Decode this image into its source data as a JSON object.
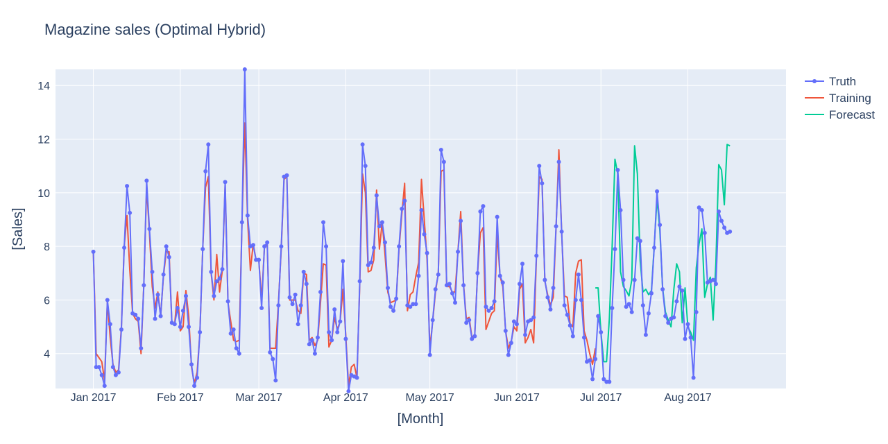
{
  "chart_data": {
    "type": "line",
    "title": "Magazine sales (Optimal Hybrid)",
    "xlabel": "[Month]",
    "ylabel": "[Sales]",
    "ylim": [
      2.7,
      14.6
    ],
    "xlim_days": [
      -13.5,
      247
    ],
    "x_axis_type": "date",
    "x_ticks": [
      {
        "label": "Jan 2017",
        "day": 0
      },
      {
        "label": "Feb 2017",
        "day": 31
      },
      {
        "label": "Mar 2017",
        "day": 59
      },
      {
        "label": "Apr 2017",
        "day": 90
      },
      {
        "label": "May 2017",
        "day": 120
      },
      {
        "label": "Jun 2017",
        "day": 151
      },
      {
        "label": "Jul 2017",
        "day": 181
      },
      {
        "label": "Aug 2017",
        "day": 212
      }
    ],
    "y_ticks": [
      4,
      6,
      8,
      10,
      12,
      14
    ],
    "grid": true,
    "legend": "top-right",
    "colors": {
      "background": "#e5ecf6",
      "grid": "#ffffff",
      "text": "#2a3f5f",
      "truth": "#636efa",
      "training": "#ef553b",
      "forecast": "#00cc96"
    },
    "series": [
      {
        "name": "Truth",
        "mode": "lines+markers",
        "start_date": "2017-01-01",
        "values": [
          7.8,
          3.5,
          3.5,
          3.2,
          2.8,
          6.0,
          5.1,
          3.5,
          3.2,
          3.3,
          4.9,
          7.95,
          10.25,
          9.25,
          5.5,
          5.45,
          5.3,
          4.2,
          6.55,
          10.45,
          8.65,
          7.05,
          5.3,
          6.2,
          5.4,
          6.95,
          8.0,
          7.6,
          5.15,
          5.1,
          5.7,
          5.0,
          5.6,
          6.15,
          5.0,
          3.6,
          2.8,
          3.1,
          4.8,
          7.9,
          10.8,
          11.8,
          7.05,
          6.15,
          6.7,
          6.8,
          7.15,
          10.4,
          5.95,
          4.75,
          4.9,
          4.2,
          4.0,
          8.9,
          14.6,
          9.15,
          8.0,
          8.05,
          7.5,
          7.5,
          5.7,
          8.0,
          8.15,
          4.05,
          3.8,
          3.0,
          5.8,
          8.0,
          10.6,
          10.65,
          6.1,
          5.85,
          6.2,
          5.1,
          5.8,
          7.05,
          6.6,
          4.35,
          4.5,
          4.0,
          4.6,
          6.3,
          8.9,
          8.0,
          4.8,
          4.5,
          5.65,
          4.8,
          5.2,
          7.45,
          4.55,
          2.6,
          3.2,
          3.15,
          3.1,
          6.7,
          11.8,
          11.0,
          7.3,
          7.4,
          7.95,
          9.9,
          8.75,
          8.9,
          8.15,
          6.45,
          5.75,
          5.6,
          6.05,
          8.0,
          9.4,
          9.7,
          5.8,
          5.75,
          5.85,
          5.85,
          6.9,
          9.35,
          8.45,
          7.75,
          3.95,
          5.25,
          6.4,
          6.95,
          11.6,
          11.15,
          6.55,
          6.6,
          6.25,
          5.9,
          7.8,
          8.95,
          6.55,
          5.15,
          5.25,
          4.55,
          4.65,
          7.0,
          9.3,
          9.5,
          5.75,
          5.6,
          5.7,
          5.95,
          9.1,
          6.9,
          6.65,
          4.85,
          3.95,
          4.4,
          5.2,
          5.1,
          6.6,
          7.35,
          4.7,
          5.2,
          5.25,
          5.35,
          7.65,
          11.0,
          10.35,
          6.75,
          6.1,
          5.65,
          6.45,
          8.75,
          11.15,
          8.55,
          5.8,
          5.45,
          5.05,
          4.65,
          6.0,
          6.95,
          6.0,
          4.6,
          3.7,
          3.75,
          3.05,
          3.8,
          5.4,
          4.8,
          3.05,
          2.95,
          2.95,
          5.7,
          7.9,
          10.85,
          9.35,
          6.75,
          5.75,
          5.85,
          5.55,
          6.75,
          8.3,
          8.2,
          5.8,
          4.7,
          5.5,
          6.25,
          7.95,
          10.05,
          8.8,
          6.4,
          5.4,
          5.15,
          5.3,
          5.35,
          5.95,
          6.5,
          6.35,
          4.55,
          5.1,
          4.6,
          3.1,
          5.55,
          9.45,
          9.35,
          8.5,
          6.65,
          6.7,
          6.75,
          6.6,
          9.3,
          8.95,
          8.7,
          8.5,
          8.55
        ]
      },
      {
        "name": "Training",
        "mode": "lines",
        "start_date": "2017-01-01",
        "values": [
          7.8,
          4.0,
          3.85,
          3.7,
          3.0,
          5.95,
          4.6,
          3.6,
          3.3,
          3.4,
          5.0,
          8.0,
          9.15,
          7.1,
          5.5,
          5.3,
          5.2,
          4.0,
          6.6,
          10.2,
          8.5,
          6.5,
          5.7,
          6.3,
          5.4,
          6.9,
          7.8,
          7.8,
          5.15,
          5.1,
          6.3,
          4.85,
          5.0,
          6.35,
          5.4,
          3.5,
          2.9,
          3.3,
          4.8,
          7.9,
          10.2,
          10.6,
          7.0,
          6.0,
          7.7,
          6.3,
          7.1,
          10.3,
          5.9,
          5.2,
          4.5,
          4.45,
          4.5,
          8.9,
          12.6,
          9.0,
          7.1,
          8.1,
          7.5,
          7.5,
          6.0,
          7.95,
          8.1,
          4.2,
          4.2,
          4.2,
          5.9,
          7.9,
          10.5,
          10.6,
          6.0,
          6.0,
          6.0,
          5.6,
          5.5,
          7.0,
          6.95,
          4.5,
          4.6,
          4.3,
          4.5,
          5.9,
          7.35,
          7.3,
          4.25,
          4.5,
          5.35,
          4.9,
          5.2,
          6.4,
          4.7,
          2.8,
          3.5,
          3.6,
          3.1,
          6.6,
          10.7,
          10.0,
          7.05,
          7.1,
          7.5,
          10.1,
          7.9,
          8.9,
          7.7,
          6.3,
          5.9,
          5.95,
          6.0,
          7.9,
          9.2,
          10.35,
          5.6,
          6.2,
          6.3,
          6.9,
          7.4,
          10.5,
          9.0,
          7.5,
          4.2,
          5.2,
          6.3,
          7.0,
          10.8,
          10.85,
          6.5,
          6.5,
          6.3,
          6.3,
          7.8,
          9.3,
          6.6,
          5.3,
          5.35,
          4.6,
          4.7,
          7.0,
          8.5,
          8.7,
          4.9,
          5.2,
          5.5,
          5.6,
          8.5,
          6.9,
          6.5,
          4.85,
          4.2,
          4.45,
          5.0,
          4.85,
          6.4,
          6.6,
          4.4,
          4.6,
          4.9,
          4.4,
          7.6,
          10.6,
          10.5,
          6.7,
          6.2,
          5.8,
          6.1,
          8.7,
          11.6,
          8.5,
          6.15,
          6.1,
          5.1,
          5.0,
          7.0,
          7.45,
          7.5,
          4.85,
          4.5,
          4.0,
          3.6,
          4.2
        ]
      },
      {
        "name": "Forecast",
        "mode": "lines",
        "start_date": "2017-06-29",
        "values": [
          6.45,
          6.45,
          4.8,
          3.7,
          3.7,
          5.3,
          8.0,
          11.25,
          10.7,
          7.05,
          6.5,
          6.35,
          6.15,
          6.75,
          11.75,
          10.7,
          7.45,
          6.3,
          6.4,
          6.2,
          6.35,
          8.0,
          9.8,
          8.6,
          6.45,
          5.55,
          5.25,
          5.0,
          6.4,
          7.35,
          7.05,
          5.15,
          6.45,
          5.0,
          4.8,
          4.5,
          7.2,
          8.1,
          8.65,
          6.1,
          6.6,
          6.85,
          5.25,
          7.4,
          11.05,
          10.85,
          9.55,
          11.8,
          11.75
        ]
      }
    ]
  }
}
